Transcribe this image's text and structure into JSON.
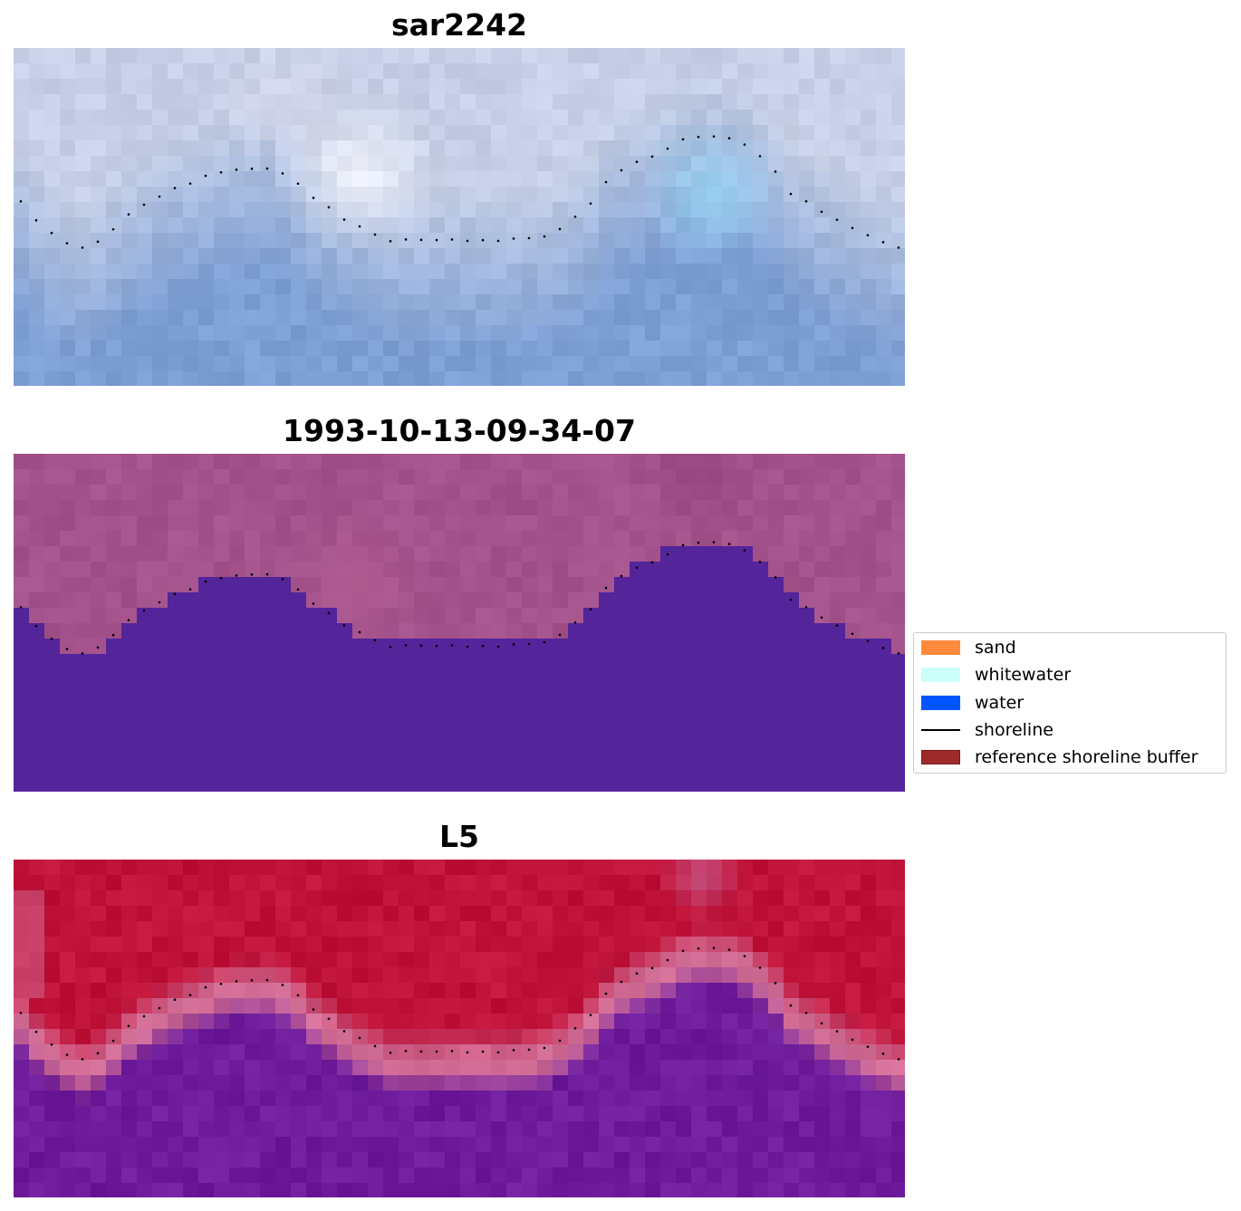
{
  "panels": [
    {
      "title": "sar2242",
      "style": "sar"
    },
    {
      "title": "1993-10-13-09-34-07",
      "style": "class"
    },
    {
      "title": "L5",
      "style": "prob"
    }
  ],
  "legend": {
    "items": [
      {
        "label": "sand",
        "kind": "patch",
        "color": "#ff8a3c"
      },
      {
        "label": "whitewater",
        "kind": "patch",
        "color": "#ccfffa"
      },
      {
        "label": "water",
        "kind": "patch",
        "color": "#0055ff"
      },
      {
        "label": "shoreline",
        "kind": "line",
        "color": "#000000"
      },
      {
        "label": "reference shoreline buffer",
        "kind": "patch",
        "color": "#9e2b2b",
        "edge": "#7a1a1a"
      }
    ]
  },
  "colors": {
    "class_water": "#54249a",
    "class_land": "#a3528b",
    "prob_land": "#c0133a",
    "prob_water": "#6e1c9c",
    "sar_top": "#c7d0e6",
    "sar_bottom": "#7e9fd4",
    "shoreline_dots": "#000000"
  }
}
